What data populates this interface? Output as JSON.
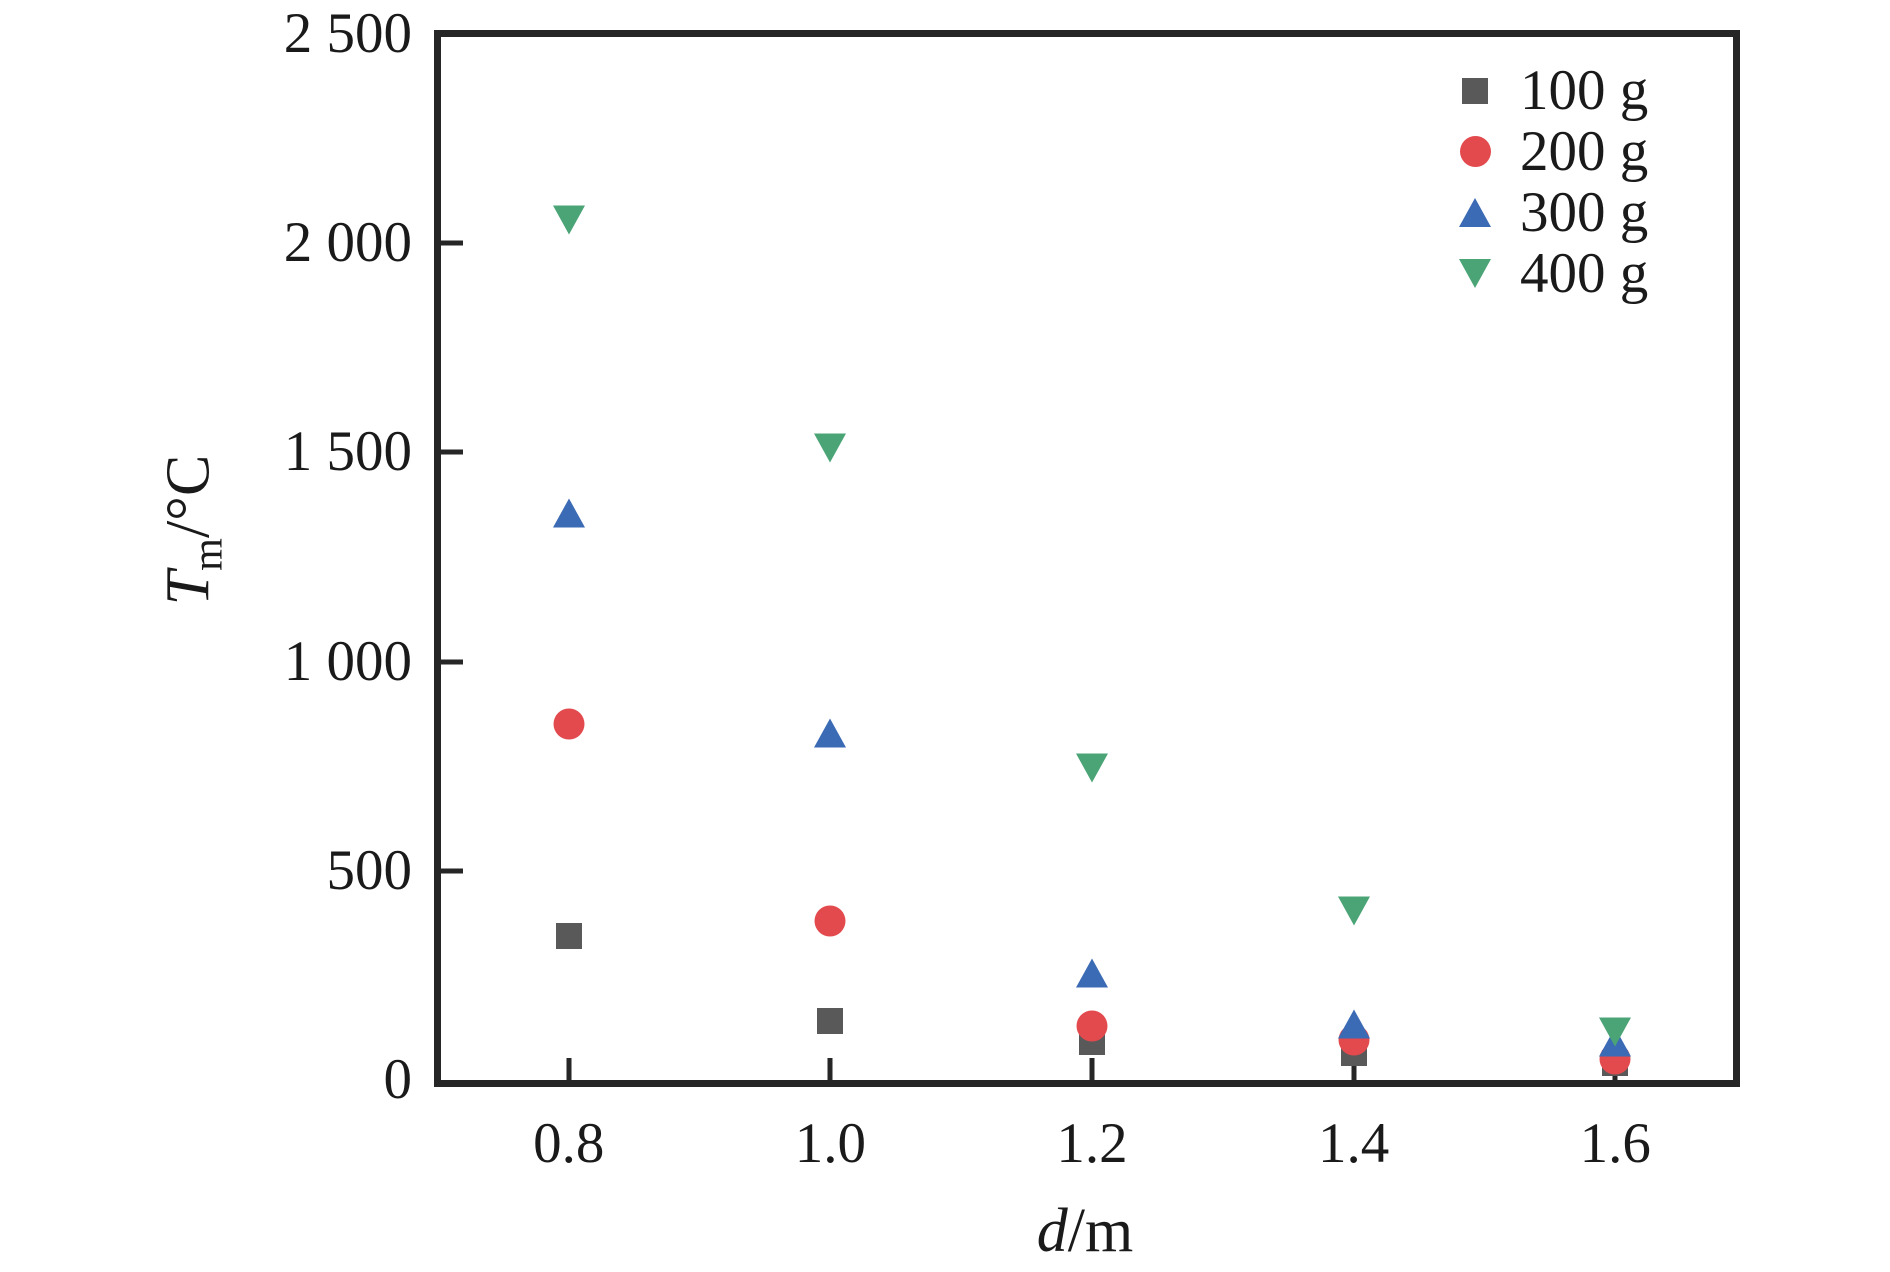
{
  "figure": {
    "background": "#ffffff",
    "text_color": "#1a1a1a",
    "frame_color": "#262626"
  },
  "chart_data": {
    "type": "scatter",
    "title": "",
    "xlabel": {
      "variable": "d",
      "unit_suffix": "/m",
      "display": "d/m"
    },
    "ylabel": {
      "variable": "T",
      "subscript": "m",
      "unit_suffix": "/°C",
      "display": "Tm/°C"
    },
    "x": [
      0.8,
      1.0,
      1.2,
      1.4,
      1.6
    ],
    "xlim": [
      0.7,
      1.69
    ],
    "ylim": [
      0,
      2500
    ],
    "xticks": {
      "values": [
        0.8,
        1.0,
        1.2,
        1.4,
        1.6
      ],
      "labels": [
        "0.8",
        "1.0",
        "1.2",
        "1.4",
        "1.6"
      ]
    },
    "yticks": {
      "values": [
        0,
        500,
        1000,
        1500,
        2000,
        2500
      ],
      "labels": [
        "0",
        "500",
        "1 000",
        "1 500",
        "2 000",
        "2 500"
      ]
    },
    "grid": false,
    "legend_position": "upper-right",
    "series": [
      {
        "name": "100 g",
        "marker": "square",
        "color": "#595959",
        "values": [
          345,
          140,
          90,
          65,
          40
        ]
      },
      {
        "name": "200 g",
        "marker": "circle",
        "color": "#e24a4e",
        "values": [
          850,
          380,
          130,
          95,
          50
        ]
      },
      {
        "name": "300 g",
        "marker": "triangle-up",
        "color": "#3b6bb4",
        "values": [
          1355,
          830,
          255,
          135,
          90
        ]
      },
      {
        "name": "400 g",
        "marker": "triangle-down",
        "color": "#4ba476",
        "values": [
          2055,
          1510,
          745,
          405,
          115
        ]
      }
    ]
  }
}
